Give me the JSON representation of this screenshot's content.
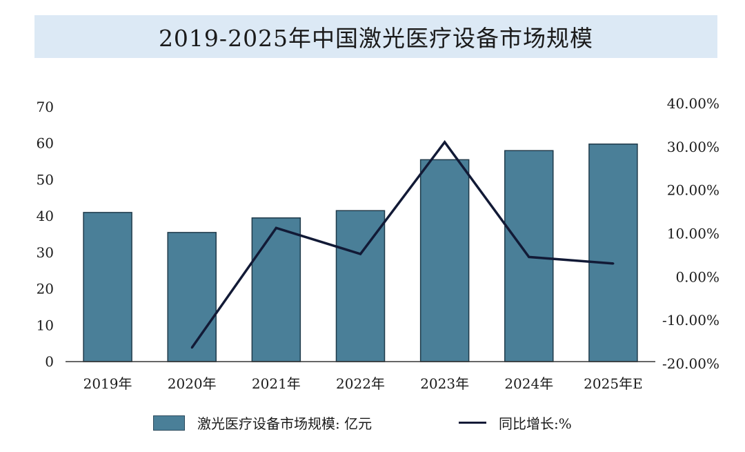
{
  "chart_data": {
    "type": "bar+line",
    "title": "2019-2025年中国激光医疗设备市场规模",
    "categories": [
      "2019年",
      "2020年",
      "2021年",
      "2022年",
      "2023年",
      "2024年",
      "2025年E"
    ],
    "series": [
      {
        "name": "激光医疗设备市场规模: 亿元",
        "type": "bar",
        "axis": "left",
        "color": "#4a7f98",
        "values": [
          41,
          35.5,
          39.5,
          41.5,
          55.5,
          58,
          59.8
        ]
      },
      {
        "name": "同比增长:%",
        "type": "line",
        "axis": "right",
        "color": "#121a36",
        "values": [
          null,
          -16.3,
          11.3,
          5.3,
          31.1,
          4.6,
          3.1
        ]
      }
    ],
    "y_left": {
      "ylim": [
        0,
        70
      ],
      "ticks": [
        "0",
        "10",
        "20",
        "30",
        "40",
        "50",
        "60",
        "70"
      ]
    },
    "y_right": {
      "ylim": [
        -20,
        40
      ],
      "ticks": [
        "-20.00%",
        "-10.00%",
        "0.00%",
        "10.00%",
        "20.00%",
        "30.00%",
        "40.00%"
      ]
    },
    "grid": false,
    "legend_position": "bottom"
  }
}
